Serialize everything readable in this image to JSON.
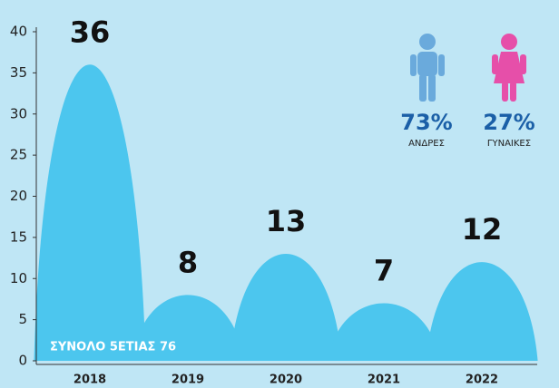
{
  "chart_data": {
    "type": "bump",
    "categories": [
      "2018",
      "2019",
      "2020",
      "2021",
      "2022"
    ],
    "values": [
      36,
      8,
      13,
      7,
      12
    ],
    "color": "#4cc6ee",
    "ylim": [
      0,
      40
    ],
    "yticks": [
      0,
      5,
      10,
      15,
      20,
      25,
      30,
      35,
      40
    ],
    "grid": false,
    "annotations": [
      "73%",
      "ΑΝΔΡΕΣ",
      "27%",
      "ΓΥΝΑΙΚΕΣ",
      "ΣΥΝΟΛΟ 5ΕΤΙΑΣ 76"
    ]
  }
}
